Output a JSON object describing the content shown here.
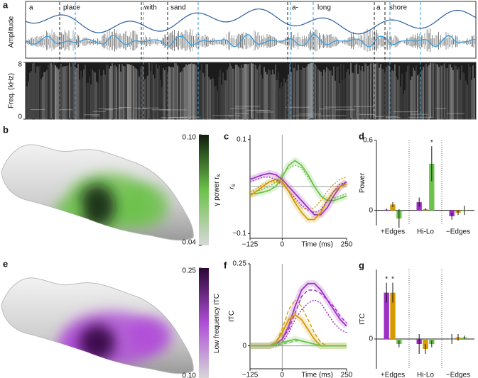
{
  "panel_labels": [
    "a",
    "b",
    "c",
    "d",
    "e",
    "f",
    "g"
  ],
  "speech": {
    "amplitude_label": "Amplitude",
    "words": [
      "a",
      "place",
      "with",
      "sand",
      "a-",
      "long",
      "a",
      "shore"
    ],
    "spectrogram": {
      "ylabel": "Freq. (kHz)",
      "ylim": [
        0,
        8
      ],
      "yticks": [
        0,
        8
      ]
    }
  },
  "brain_maps": [
    {
      "colorbar": {
        "label": "γ power r",
        "label_subscript": "s",
        "lim": [
          0.04,
          0.1
        ],
        "ticks": [
          {
            "value": 0.1,
            "label": "0.10"
          },
          0.04
        ],
        "colors": [
          "#d8d8d8",
          "#6cc24a",
          "#0f1f0c"
        ]
      }
    },
    {
      "colorbar": {
        "label": "Low frequency ITC",
        "lim": [
          0.1,
          0.25
        ],
        "ticks": [
          0.25,
          {
            "value": 0.1,
            "label": "0.10"
          }
        ],
        "colors": [
          "#d8d8d8",
          "#b04ed8",
          "#2a0636"
        ]
      }
    }
  ],
  "chart_data": [
    {
      "type": "line",
      "ylabel": "r",
      "ylabel_subscript": "s",
      "xlabel": "Time (ms)",
      "x": [
        -125,
        -100,
        -75,
        -50,
        -25,
        0,
        25,
        50,
        75,
        100,
        125,
        150,
        175,
        200,
        225,
        250
      ],
      "xlim": [
        -125,
        250
      ],
      "xticks": [
        {
          "value": -125,
          "label": "−125"
        },
        0,
        250
      ],
      "ylim": [
        -0.11,
        0.11
      ],
      "yticks": [
        {
          "value": -0.1,
          "label": "−0.1"
        },
        0.1
      ],
      "zero_lines": true,
      "series": [
        {
          "color": "#6cc24a",
          "dash": "solid",
          "values": [
            -0.015,
            -0.015,
            -0.012,
            -0.008,
            0.0,
            0.02,
            0.045,
            0.055,
            0.045,
            0.025,
            0.0,
            -0.02,
            -0.03,
            -0.03,
            -0.025,
            -0.02
          ]
        },
        {
          "color": "#9c2fc4",
          "dash": "solid",
          "values": [
            0.015,
            0.02,
            0.025,
            0.028,
            0.025,
            0.015,
            0.0,
            -0.015,
            -0.03,
            -0.045,
            -0.06,
            -0.06,
            -0.045,
            -0.02,
            0.0,
            0.01
          ]
        },
        {
          "color": "#d49a00",
          "dash": "solid",
          "values": [
            -0.02,
            -0.01,
            0.0,
            0.01,
            0.015,
            0.01,
            -0.01,
            -0.035,
            -0.055,
            -0.07,
            -0.07,
            -0.055,
            -0.03,
            -0.01,
            0.0,
            0.005
          ]
        },
        {
          "color": "#6cc24a",
          "dash": "dotted",
          "values": [
            -0.01,
            -0.01,
            -0.005,
            0.0,
            0.01,
            0.025,
            0.04,
            0.045,
            0.04,
            0.02,
            0.0,
            -0.02,
            -0.03,
            -0.025,
            -0.02,
            -0.015
          ]
        },
        {
          "color": "#9c2fc4",
          "dash": "dotted",
          "values": [
            0.01,
            0.015,
            0.02,
            0.02,
            0.015,
            0.005,
            -0.01,
            -0.025,
            -0.04,
            -0.05,
            -0.055,
            -0.05,
            -0.03,
            -0.01,
            0.005,
            0.01
          ]
        },
        {
          "color": "#d49a00",
          "dash": "dotted",
          "values": [
            -0.01,
            -0.005,
            0.005,
            0.01,
            0.01,
            0.005,
            -0.01,
            -0.03,
            -0.045,
            -0.05,
            -0.045,
            -0.03,
            -0.01,
            0.005,
            0.015,
            0.02
          ]
        }
      ]
    },
    {
      "type": "bar",
      "ylabel": "Power",
      "categories": [
        "+Edges",
        "Hi-Lo",
        "−Edges"
      ],
      "ylim": [
        -0.13,
        0.6
      ],
      "yticks": [
        0,
        0.6
      ],
      "series": [
        {
          "color": "#9c2fc4",
          "values": [
            0.005,
            0.07,
            -0.05
          ],
          "errors": [
            0.01,
            0.04,
            0.03
          ]
        },
        {
          "color": "#d49a00",
          "values": [
            0.05,
            0.01,
            -0.02
          ],
          "errors": [
            0.02,
            0.01,
            0.02
          ]
        },
        {
          "color": "#6cc24a",
          "values": [
            -0.07,
            0.4,
            0.0
          ],
          "errors": [
            0.08,
            0.15,
            0.04
          ],
          "significance": [
            null,
            "*",
            null
          ]
        }
      ]
    },
    {
      "type": "line",
      "ylabel": "ITC",
      "xlabel": "Time (ms)",
      "x": [
        -125,
        -100,
        -75,
        -50,
        -25,
        0,
        25,
        50,
        75,
        100,
        125,
        150,
        175,
        200,
        225,
        250
      ],
      "xlim": [
        -125,
        250
      ],
      "xticks": [
        {
          "value": -125,
          "label": "−125"
        },
        0,
        250
      ],
      "ylim": [
        -0.07,
        0.25
      ],
      "yticks": [
        0,
        0.25
      ],
      "zero_lines": true,
      "series": [
        {
          "color": "#9c2fc4",
          "dash": "solid",
          "values": [
            0.0,
            0.0,
            0.0,
            0.0,
            0.005,
            0.02,
            0.06,
            0.12,
            0.17,
            0.19,
            0.19,
            0.17,
            0.14,
            0.11,
            0.08,
            0.06
          ]
        },
        {
          "color": "#9c2fc4",
          "dash": "dashed",
          "values": [
            0.0,
            0.0,
            0.0,
            0.0,
            0.005,
            0.02,
            0.05,
            0.1,
            0.15,
            0.17,
            0.17,
            0.16,
            0.14,
            0.12,
            0.09,
            0.07
          ]
        },
        {
          "color": "#9c2fc4",
          "dash": "dotted",
          "values": [
            0.0,
            0.0,
            0.0,
            0.0,
            0.0,
            0.01,
            0.04,
            0.08,
            0.11,
            0.13,
            0.14,
            0.13,
            0.1,
            0.07,
            0.05,
            0.04
          ]
        },
        {
          "color": "#d49a00",
          "dash": "solid",
          "values": [
            0.0,
            0.0,
            0.0,
            0.0,
            0.01,
            0.04,
            0.08,
            0.095,
            0.08,
            0.05,
            0.02,
            0.0,
            0.0,
            0.0,
            0.0,
            0.0
          ]
        },
        {
          "color": "#d49a00",
          "dash": "dashed",
          "values": [
            0.0,
            0.0,
            0.0,
            0.0,
            0.01,
            0.05,
            0.11,
            0.14,
            0.12,
            0.08,
            0.04,
            0.01,
            0.0,
            0.0,
            0.0,
            0.0
          ]
        },
        {
          "color": "#6cc24a",
          "dash": "solid",
          "values": [
            0.0,
            0.0,
            0.0,
            0.0,
            0.005,
            0.01,
            0.015,
            0.02,
            0.015,
            0.01,
            0.005,
            0.0,
            0.0,
            0.0,
            0.0,
            0.0
          ]
        },
        {
          "color": "#6cc24a",
          "dash": "dashed",
          "values": [
            0.0,
            0.0,
            0.0,
            0.0,
            0.0,
            0.005,
            0.01,
            0.015,
            0.015,
            0.01,
            0.005,
            0.0,
            0.0,
            0.0,
            0.0,
            0.0
          ]
        }
      ]
    },
    {
      "type": "bar",
      "ylabel": "ITC",
      "categories": [
        "+Edges",
        "Hi-Lo",
        "−Edges"
      ],
      "ylim": [
        -0.09,
        0.21
      ],
      "yticks": [
        0
      ],
      "series": [
        {
          "color": "#9c2fc4",
          "values": [
            0.14,
            -0.015,
            0.0
          ],
          "errors": [
            0.03,
            0.03,
            0.015
          ],
          "significance": [
            "*",
            null,
            null
          ]
        },
        {
          "color": "#d49a00",
          "values": [
            0.14,
            -0.03,
            0.005
          ],
          "errors": [
            0.03,
            0.015,
            0.01
          ],
          "significance": [
            "*",
            null,
            null
          ]
        },
        {
          "color": "#6cc24a",
          "values": [
            -0.015,
            -0.015,
            0.005
          ],
          "errors": [
            0.01,
            0.01,
            0.005
          ]
        }
      ]
    }
  ]
}
